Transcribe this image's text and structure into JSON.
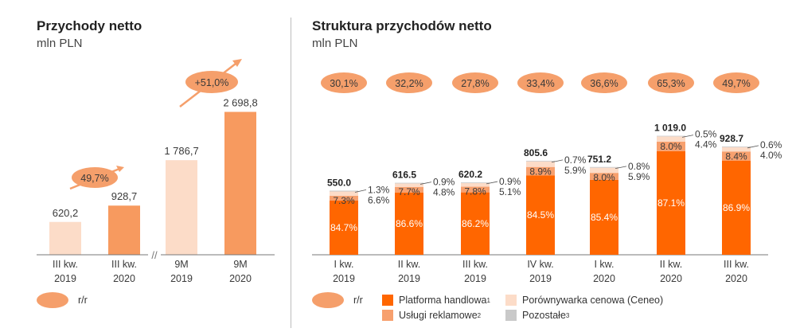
{
  "left": {
    "title": "Przychody netto",
    "subtitle": "mln PLN",
    "rr_label": "r/r"
  },
  "right": {
    "title": "Struktura przychodów netto",
    "subtitle": "mln PLN",
    "rr_label": "r/r"
  },
  "colors": {
    "platform": "#ff6600",
    "ads": "#f7a06e",
    "ceneo": "#fcdcc8",
    "other": "#c9c9c9",
    "light_bar": "#fcdcc8",
    "mid_bar": "#f79a5f",
    "ellipse": "#f59f6b"
  },
  "chart_data": [
    {
      "type": "bar",
      "title": "Przychody netto",
      "subtitle": "mln PLN",
      "categories": [
        [
          "III kw.",
          "2019"
        ],
        [
          "III kw.",
          "2020"
        ],
        [
          "9M",
          "2019"
        ],
        [
          "9M",
          "2020"
        ]
      ],
      "values": [
        620.2,
        928.7,
        1786.7,
        2698.8
      ],
      "value_labels": [
        "620,2",
        "928,7",
        "1 786,7",
        "2 698,8"
      ],
      "growth": [
        {
          "label": "49,7%",
          "from": 0,
          "to": 1
        },
        {
          "label": "+51,0%",
          "from": 2,
          "to": 3
        }
      ],
      "axis_break_label": "//",
      "legend": "r/r"
    },
    {
      "type": "bar",
      "stacked": true,
      "title": "Struktura przychodów netto",
      "subtitle": "mln PLN",
      "categories": [
        [
          "I kw.",
          "2019"
        ],
        [
          "II kw.",
          "2019"
        ],
        [
          "III kw.",
          "2019"
        ],
        [
          "IV kw.",
          "2019"
        ],
        [
          "I kw.",
          "2020"
        ],
        [
          "II kw.",
          "2020"
        ],
        [
          "III kw.",
          "2020"
        ]
      ],
      "totals": [
        550.0,
        616.5,
        620.2,
        805.6,
        751.2,
        1019.0,
        928.7
      ],
      "total_labels": [
        "550.0",
        "616.5",
        "620.2",
        "805.6",
        "751.2",
        "1 019.0",
        "928.7"
      ],
      "yoy": [
        "30,1%",
        "32,2%",
        "27,8%",
        "33,4%",
        "36,6%",
        "65,3%",
        "49,7%"
      ],
      "series": [
        {
          "key": "platform",
          "name": "Platforma handlowa",
          "sup": "1",
          "pct": [
            84.7,
            86.6,
            86.2,
            84.5,
            85.4,
            87.1,
            86.9
          ],
          "labels": [
            "84.7%",
            "86.6%",
            "86.2%",
            "84.5%",
            "85.4%",
            "87.1%",
            "86.9%"
          ]
        },
        {
          "key": "ads",
          "name": "Usługi reklamowe",
          "sup": "2",
          "pct": [
            7.3,
            7.7,
            7.8,
            8.9,
            8.0,
            8.0,
            8.4
          ],
          "labels": [
            "7.3%",
            "7.7%",
            "7.8%",
            "8.9%",
            "8.0%",
            "8.0%",
            "8.4%"
          ]
        },
        {
          "key": "ceneo",
          "name": "Porównywarka cenowa (Ceneo)",
          "sup": "",
          "pct": [
            6.6,
            4.8,
            5.1,
            5.9,
            5.9,
            4.4,
            4.0
          ],
          "labels": [
            "6.6%",
            "4.8%",
            "5.1%",
            "5.9%",
            "5.9%",
            "4.4%",
            "4.0%"
          ]
        },
        {
          "key": "other",
          "name": "Pozostałe",
          "sup": "3",
          "pct": [
            1.3,
            0.9,
            0.9,
            0.7,
            0.8,
            0.5,
            0.6
          ],
          "labels": [
            "1.3%",
            "0.9%",
            "0.9%",
            "0.7%",
            "0.8%",
            "0.5%",
            "0.6%"
          ]
        }
      ],
      "legend": "r/r"
    }
  ],
  "legend_items": [
    {
      "key": "platform",
      "name": "Platforma handlowa",
      "sup": "1"
    },
    {
      "key": "ceneo",
      "name": "Porównywarka cenowa (Ceneo)",
      "sup": ""
    },
    {
      "key": "ads",
      "name": "Usługi reklamowe",
      "sup": "2"
    },
    {
      "key": "other",
      "name": "Pozostałe",
      "sup": "3"
    }
  ]
}
